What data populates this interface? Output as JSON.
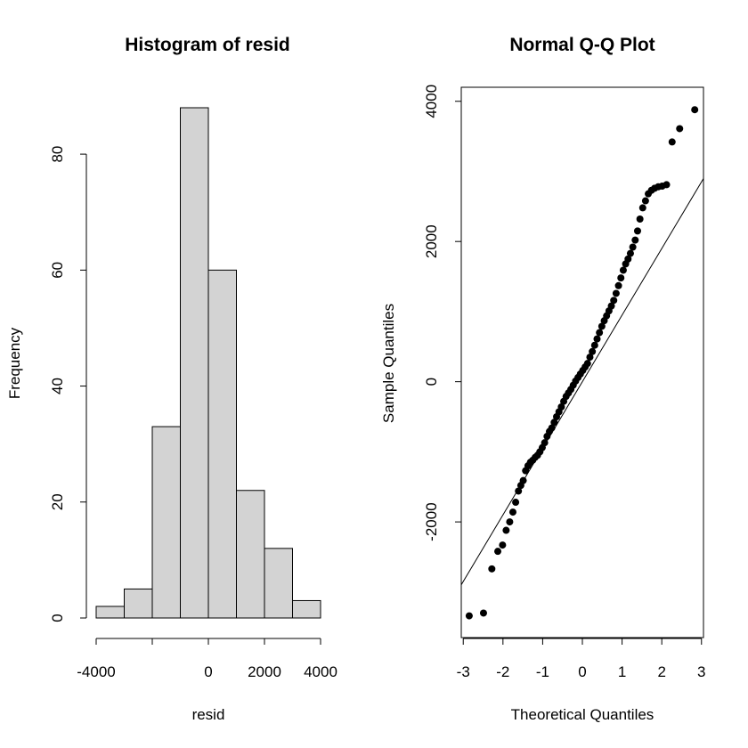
{
  "chart_data": [
    {
      "type": "bar",
      "subtype": "histogram",
      "title": "Histogram of resid",
      "xlabel": "resid",
      "ylabel": "Frequency",
      "bin_edges": [
        -4000,
        -3000,
        -2000,
        -1000,
        0,
        1000,
        2000,
        3000,
        4000
      ],
      "values": [
        2,
        5,
        33,
        88,
        60,
        22,
        12,
        3
      ],
      "bar_color": "#d3d3d3",
      "xlim": [
        -4000,
        4000
      ],
      "ylim": [
        0,
        88
      ],
      "x_ticks": [
        -4000,
        -2000,
        0,
        2000,
        4000
      ],
      "x_tick_labels": [
        "-4000",
        "",
        "0",
        "2000",
        "4000"
      ],
      "y_ticks": [
        0,
        20,
        40,
        60,
        80
      ],
      "y_tick_labels": [
        "0",
        "20",
        "40",
        "60",
        "80"
      ],
      "grid": false
    },
    {
      "type": "scatter",
      "subtype": "qq-plot",
      "title": "Normal Q-Q Plot",
      "xlabel": "Theoretical Quantiles",
      "ylabel": "Sample Quantiles",
      "xlim": [
        -3.05,
        3.05
      ],
      "ylim": [
        -3650,
        4200
      ],
      "x_ticks": [
        -3,
        -2,
        -1,
        0,
        1,
        2,
        3
      ],
      "x_tick_labels": [
        "-3",
        "-2",
        "-1",
        "0",
        "1",
        "2",
        "3"
      ],
      "y_ticks": [
        -2000,
        0,
        2000,
        4000
      ],
      "y_tick_labels": [
        "-2000",
        "0",
        "2000",
        "4000"
      ],
      "reference_line": {
        "intercept": 0,
        "slope": 950
      },
      "point_color": "#000000",
      "grid": false,
      "x": [
        -2.85,
        -2.49,
        -2.28,
        -2.13,
        -2.01,
        -1.92,
        -1.83,
        -1.75,
        -1.68,
        -1.61,
        -1.55,
        -1.49,
        -1.43,
        -1.37,
        -1.31,
        -1.25,
        -1.19,
        -1.13,
        -1.07,
        -1.01,
        -0.95,
        -0.89,
        -0.83,
        -0.77,
        -0.71,
        -0.65,
        -0.59,
        -0.53,
        -0.47,
        -0.41,
        -0.35,
        -0.29,
        -0.23,
        -0.17,
        -0.11,
        -0.05,
        0.01,
        0.07,
        0.13,
        0.19,
        0.25,
        0.31,
        0.37,
        0.43,
        0.49,
        0.55,
        0.61,
        0.67,
        0.73,
        0.79,
        0.85,
        0.91,
        0.97,
        1.03,
        1.09,
        1.15,
        1.21,
        1.27,
        1.33,
        1.39,
        1.45,
        1.52,
        1.59,
        1.66,
        1.74,
        1.82,
        1.91,
        2.01,
        2.12,
        2.26,
        2.45,
        2.83
      ],
      "y": [
        -3340,
        -3300,
        -2670,
        -2420,
        -2330,
        -2120,
        -2000,
        -1860,
        -1720,
        -1560,
        -1480,
        -1410,
        -1270,
        -1200,
        -1150,
        -1120,
        -1080,
        -1050,
        -1000,
        -940,
        -870,
        -780,
        -710,
        -660,
        -580,
        -500,
        -430,
        -360,
        -280,
        -210,
        -160,
        -110,
        -50,
        10,
        60,
        110,
        160,
        210,
        260,
        350,
        430,
        520,
        610,
        700,
        790,
        870,
        940,
        1010,
        1080,
        1160,
        1260,
        1370,
        1480,
        1590,
        1680,
        1750,
        1830,
        1920,
        2020,
        2150,
        2320,
        2480,
        2580,
        2680,
        2730,
        2760,
        2780,
        2790,
        2810,
        3420,
        3610,
        3880
      ]
    }
  ]
}
